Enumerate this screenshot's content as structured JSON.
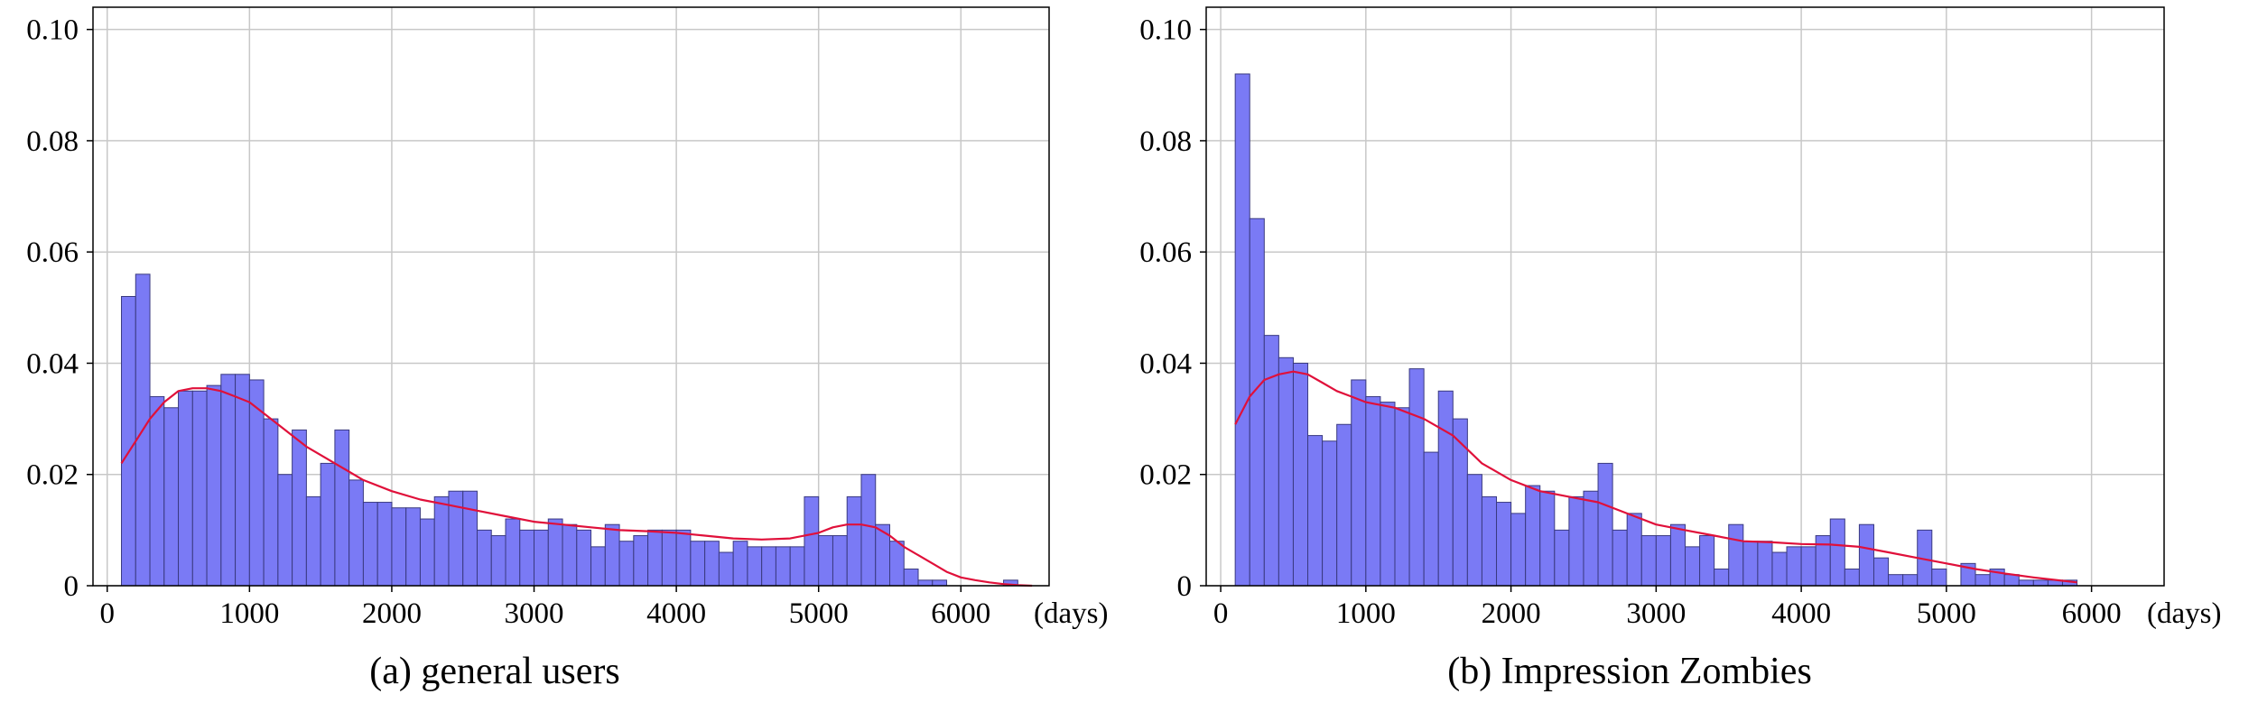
{
  "chart_data": [
    {
      "type": "bar",
      "title": "(a) general users",
      "x_unit": "(days)",
      "xlim": [
        -100,
        6620
      ],
      "ylim": [
        0,
        0.104
      ],
      "x_ticks": [
        0,
        1000,
        2000,
        3000,
        4000,
        5000,
        6000
      ],
      "y_ticks": [
        0,
        0.02,
        0.04,
        0.06,
        0.08,
        0.1
      ],
      "y_tick_labels": [
        "0",
        "0.02",
        "0.04",
        "0.06",
        "0.08",
        "0.10"
      ],
      "grid": true,
      "bar_color": "#7a7af5",
      "bar_edge_color": "#3a3a80",
      "kde_color": "#e0103a",
      "bin_start": 100,
      "bin_width": 100,
      "bar_values": [
        0.052,
        0.056,
        0.034,
        0.032,
        0.035,
        0.035,
        0.036,
        0.038,
        0.038,
        0.037,
        0.03,
        0.02,
        0.028,
        0.016,
        0.022,
        0.028,
        0.019,
        0.015,
        0.015,
        0.014,
        0.014,
        0.012,
        0.016,
        0.017,
        0.017,
        0.01,
        0.009,
        0.012,
        0.01,
        0.01,
        0.012,
        0.011,
        0.01,
        0.007,
        0.011,
        0.008,
        0.009,
        0.01,
        0.01,
        0.01,
        0.008,
        0.008,
        0.006,
        0.008,
        0.007,
        0.007,
        0.007,
        0.007,
        0.016,
        0.009,
        0.009,
        0.016,
        0.02,
        0.011,
        0.008,
        0.003,
        0.001,
        0.001,
        0,
        0,
        0,
        0,
        0.001
      ],
      "kde_x": [
        100,
        200,
        300,
        400,
        500,
        600,
        700,
        800,
        900,
        1000,
        1200,
        1400,
        1600,
        1800,
        2000,
        2200,
        2400,
        2600,
        2800,
        3000,
        3200,
        3400,
        3600,
        3800,
        4000,
        4200,
        4400,
        4600,
        4800,
        5000,
        5100,
        5200,
        5300,
        5400,
        5500,
        5600,
        5700,
        5800,
        5900,
        6000,
        6100,
        6200,
        6300,
        6400,
        6500
      ],
      "kde_y": [
        0.022,
        0.026,
        0.03,
        0.033,
        0.035,
        0.0355,
        0.0355,
        0.035,
        0.034,
        0.033,
        0.029,
        0.025,
        0.022,
        0.019,
        0.017,
        0.0155,
        0.0145,
        0.0135,
        0.0125,
        0.0115,
        0.011,
        0.0105,
        0.01,
        0.0098,
        0.0095,
        0.009,
        0.0085,
        0.0083,
        0.0085,
        0.0095,
        0.0105,
        0.011,
        0.011,
        0.0105,
        0.009,
        0.007,
        0.0055,
        0.004,
        0.0025,
        0.0015,
        0.001,
        0.0006,
        0.0003,
        0.0001,
        0
      ]
    },
    {
      "type": "bar",
      "title": "(b) Impression Zombies",
      "x_unit": "(days)",
      "xlim": [
        -100,
        6500
      ],
      "ylim": [
        0,
        0.104
      ],
      "x_ticks": [
        0,
        1000,
        2000,
        3000,
        4000,
        5000,
        6000
      ],
      "y_ticks": [
        0,
        0.02,
        0.04,
        0.06,
        0.08,
        0.1
      ],
      "y_tick_labels": [
        "0",
        "0.02",
        "0.04",
        "0.06",
        "0.08",
        "0.10"
      ],
      "grid": true,
      "bar_color": "#7a7af5",
      "bar_edge_color": "#3a3a80",
      "kde_color": "#e0103a",
      "bin_start": 100,
      "bin_width": 100,
      "bar_values": [
        0.092,
        0.066,
        0.045,
        0.041,
        0.04,
        0.027,
        0.026,
        0.029,
        0.037,
        0.034,
        0.033,
        0.032,
        0.039,
        0.024,
        0.035,
        0.03,
        0.02,
        0.016,
        0.015,
        0.013,
        0.018,
        0.017,
        0.01,
        0.016,
        0.017,
        0.022,
        0.01,
        0.013,
        0.009,
        0.009,
        0.011,
        0.007,
        0.009,
        0.003,
        0.011,
        0.008,
        0.008,
        0.006,
        0.007,
        0.007,
        0.009,
        0.012,
        0.003,
        0.011,
        0.005,
        0.002,
        0.002,
        0.01,
        0.003,
        0,
        0.004,
        0.002,
        0.003,
        0.002,
        0.001,
        0.001,
        0.001,
        0.001
      ],
      "kde_x": [
        100,
        200,
        300,
        400,
        500,
        600,
        700,
        800,
        900,
        1000,
        1200,
        1400,
        1600,
        1800,
        2000,
        2200,
        2400,
        2600,
        2800,
        3000,
        3200,
        3400,
        3600,
        3800,
        4000,
        4200,
        4400,
        4600,
        4800,
        5000,
        5200,
        5400,
        5600,
        5800,
        5900
      ],
      "kde_y": [
        0.029,
        0.034,
        0.037,
        0.038,
        0.0385,
        0.038,
        0.0365,
        0.035,
        0.034,
        0.033,
        0.032,
        0.03,
        0.027,
        0.022,
        0.019,
        0.017,
        0.016,
        0.015,
        0.013,
        0.011,
        0.01,
        0.009,
        0.008,
        0.0078,
        0.0075,
        0.0074,
        0.007,
        0.006,
        0.005,
        0.004,
        0.003,
        0.0022,
        0.0015,
        0.0009,
        0.0006
      ]
    }
  ]
}
